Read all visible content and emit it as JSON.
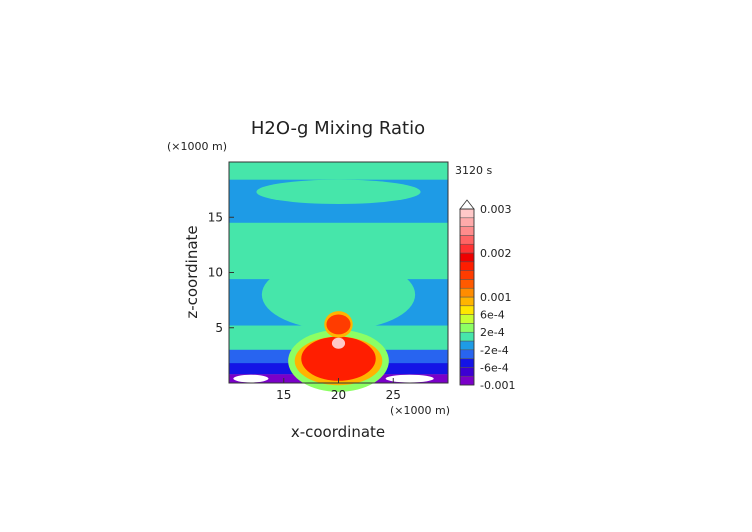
{
  "chart_data": {
    "type": "heatmap",
    "title": "H2O-g Mixing Ratio",
    "time_label": "3120 s",
    "xlabel": "x-coordinate",
    "ylabel": "z-coordinate",
    "x_unit": "(×1000 m)",
    "y_unit": "(×1000 m)",
    "xlim": [
      10,
      30
    ],
    "ylim": [
      0,
      20
    ],
    "x_ticks": [
      15,
      20,
      25
    ],
    "y_ticks": [
      5,
      10,
      15
    ],
    "colorbar": {
      "levels": [
        -0.001,
        -0.0008,
        -0.0006,
        -0.0004,
        -0.0002,
        0,
        0.0002,
        0.0004,
        0.0006,
        0.0008,
        0.001,
        0.0012,
        0.0014,
        0.0016,
        0.0018,
        0.002,
        0.0022,
        0.0024,
        0.0026,
        0.0028,
        0.003
      ],
      "colors": [
        "#7a00c8",
        "#3c00d2",
        "#1414e6",
        "#2864f0",
        "#1e9be6",
        "#46e6aa",
        "#8cff64",
        "#c8ff32",
        "#ffe600",
        "#ffb400",
        "#ff8c00",
        "#ff5a00",
        "#ff3c00",
        "#ff1e00",
        "#ee0000",
        "#ff3232",
        "#ff6464",
        "#ff8c8c",
        "#ffaaaa",
        "#ffc8c8"
      ],
      "tick_labels": [
        {
          "value": -0.001,
          "text": "-0.001"
        },
        {
          "value": -0.0006,
          "text": "-6e-4"
        },
        {
          "value": -0.0002,
          "text": "-2e-4"
        },
        {
          "value": 0.0002,
          "text": "2e-4"
        },
        {
          "value": 0.0006,
          "text": "6e-4"
        },
        {
          "value": 0.001,
          "text": "0.001"
        },
        {
          "value": 0.002,
          "text": "0.002"
        },
        {
          "value": 0.003,
          "text": "0.003"
        }
      ]
    },
    "field_layers": [
      {
        "type": "rect",
        "x0": 10,
        "x1": 30,
        "z0": 0,
        "z1": 20,
        "value": -0.0001
      },
      {
        "type": "rect",
        "x0": 10,
        "x1": 30,
        "z0": 18.4,
        "z1": 20,
        "value": 0.0001
      },
      {
        "type": "blob",
        "cx": 20,
        "cz": 17.3,
        "rx": 7.5,
        "rz": 1.1,
        "value": 0.0001
      },
      {
        "type": "rect",
        "x0": 10,
        "x1": 30,
        "z0": 9.4,
        "z1": 14.5,
        "value": 0.0001
      },
      {
        "type": "blob",
        "cx": 20,
        "cz": 8.0,
        "rx": 7.0,
        "rz": 3.2,
        "value": 0.0001
      },
      {
        "type": "rect",
        "x0": 10,
        "x1": 30,
        "z0": 3.0,
        "z1": 5.2,
        "value": 0.0001
      },
      {
        "type": "rect",
        "x0": 10,
        "x1": 30,
        "z0": 1.8,
        "z1": 3.0,
        "value": -0.0003
      },
      {
        "type": "rect",
        "x0": 10,
        "x1": 30,
        "z0": 0.8,
        "z1": 1.8,
        "value": -0.0005
      },
      {
        "type": "rect",
        "x0": 10,
        "x1": 30,
        "z0": 0,
        "z1": 0.8,
        "value": -0.0009
      },
      {
        "type": "blob",
        "cx": 20,
        "cz": 2.0,
        "rx": 4.6,
        "rz": 2.8,
        "value": 0.0003
      },
      {
        "type": "blob",
        "cx": 20,
        "cz": 2.0,
        "rx": 4.0,
        "rz": 2.2,
        "value": 0.0009
      },
      {
        "type": "blob",
        "cx": 20,
        "cz": 2.2,
        "rx": 3.4,
        "rz": 2.0,
        "value": 0.0017
      },
      {
        "type": "blob",
        "cx": 20,
        "cz": 5.3,
        "rx": 1.3,
        "rz": 1.2,
        "value": 0.0009
      },
      {
        "type": "blob",
        "cx": 20,
        "cz": 5.3,
        "rx": 1.1,
        "rz": 0.9,
        "value": 0.0015
      },
      {
        "type": "blob",
        "cx": 20,
        "cz": 3.6,
        "rx": 0.6,
        "rz": 0.5,
        "value": 0.0029
      },
      {
        "type": "blob",
        "cx": 12.0,
        "cz": 0.4,
        "rx": 1.6,
        "rz": 0.35,
        "value": 0.0031
      },
      {
        "type": "blob",
        "cx": 26.5,
        "cz": 0.4,
        "rx": 2.2,
        "rz": 0.35,
        "value": 0.0031
      }
    ]
  }
}
